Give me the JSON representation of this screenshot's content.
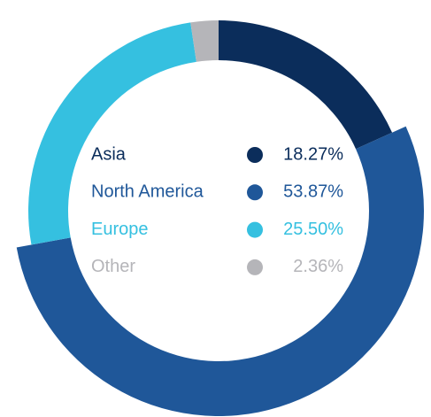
{
  "chart_data": {
    "type": "pie",
    "categories": [
      "Asia",
      "North America",
      "Europe",
      "Other"
    ],
    "values": [
      18.27,
      53.87,
      25.5,
      2.36
    ],
    "value_labels": [
      "18.27%",
      "53.87%",
      "25.50%",
      "2.36%"
    ],
    "colors": [
      "#0b2d5b",
      "#1f5799",
      "#35c0e0",
      "#b5b5b9"
    ]
  }
}
